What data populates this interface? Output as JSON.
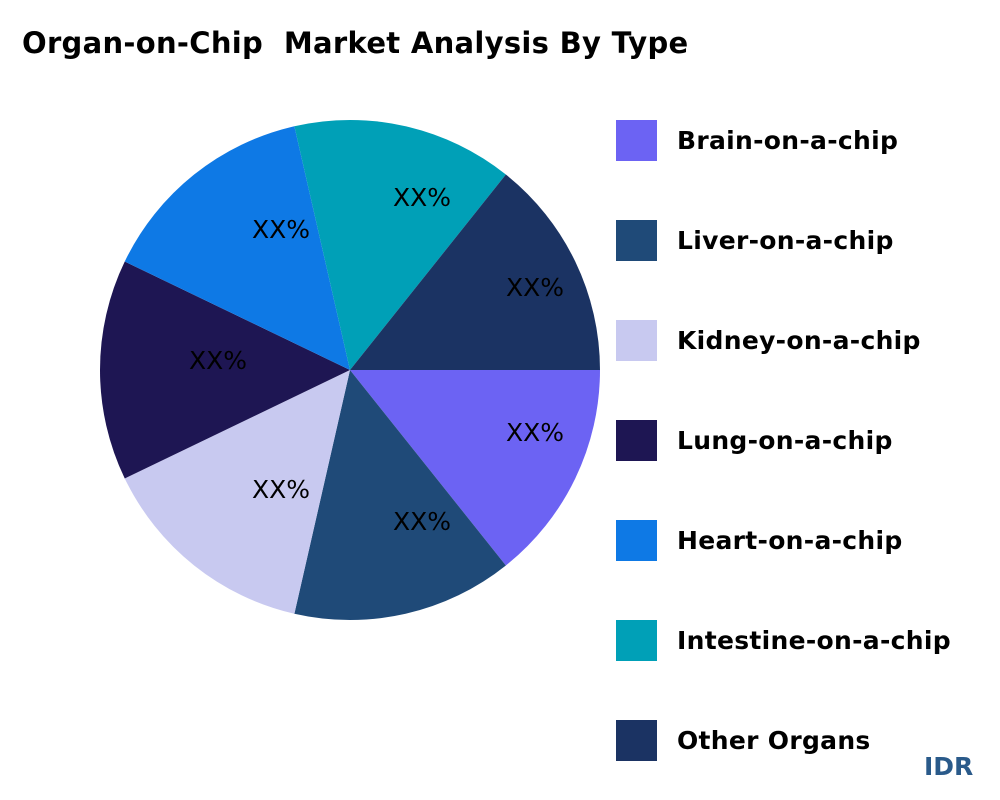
{
  "title": "Organ-on-Chip  Market Analysis By Type",
  "watermark": "IDR",
  "chart_data": {
    "type": "pie",
    "title": "Organ-on-Chip  Market Analysis By Type",
    "legend_position": "right",
    "slices": [
      {
        "name": "Brain-on-a-chip",
        "label": "XX%",
        "share": 1,
        "color": "#6C63F3"
      },
      {
        "name": "Liver-on-a-chip",
        "label": "XX%",
        "share": 1,
        "color": "#1F4A78"
      },
      {
        "name": "Kidney-on-a-chip",
        "label": "XX%",
        "share": 1,
        "color": "#C8C9F0"
      },
      {
        "name": "Lung-on-a-chip",
        "label": "XX%",
        "share": 1,
        "color": "#1E1653"
      },
      {
        "name": "Heart-on-a-chip",
        "label": "XX%",
        "share": 1,
        "color": "#0E79E5"
      },
      {
        "name": "Intestine-on-a-chip",
        "label": "XX%",
        "share": 1,
        "color": "#00A0B7"
      },
      {
        "name": "Other Organs",
        "label": "XX%",
        "share": 1,
        "color": "#1B3363"
      }
    ]
  }
}
